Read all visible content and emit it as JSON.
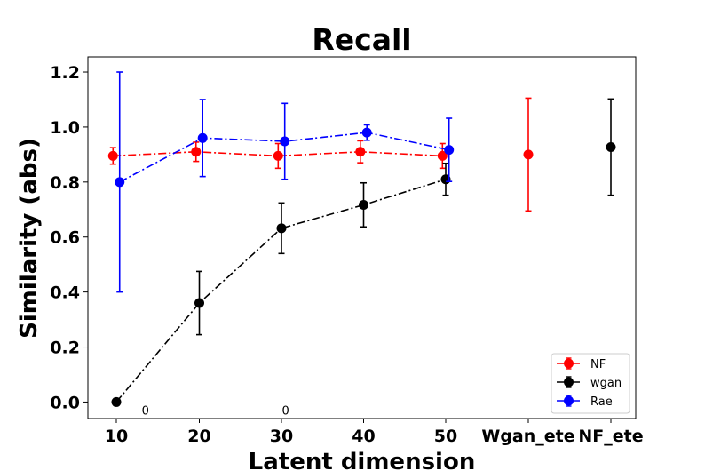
{
  "chart_data": {
    "type": "scatter",
    "title": "Recall",
    "xlabel": "Latent dimension",
    "ylabel": "Similarity (abs)",
    "categories": [
      "10",
      "20",
      "30",
      "40",
      "50",
      "Wgan_ete",
      "NF_ete"
    ],
    "ylim": [
      -0.06,
      1.255
    ],
    "yticks": [
      0.0,
      0.2,
      0.4,
      0.6,
      0.8,
      1.0,
      1.2
    ],
    "ytick_labels": [
      "0.0",
      "0.2",
      "0.4",
      "0.6",
      "0.8",
      "1.0",
      "1.2"
    ],
    "grid": false,
    "legend_position": "lower-right",
    "series": [
      {
        "name": "NF",
        "color": "#ff0000",
        "linestyle": "dashdot",
        "points": [
          {
            "x": 9.6,
            "y": 0.895,
            "err": 0.03
          },
          {
            "x": 19.6,
            "y": 0.91,
            "err": 0.035
          },
          {
            "x": 29.6,
            "y": 0.895,
            "err": 0.045
          },
          {
            "x": 39.6,
            "y": 0.91,
            "err": 0.04
          },
          {
            "x": 49.6,
            "y": 0.895,
            "err": 0.045
          }
        ]
      },
      {
        "name": "wgan",
        "color": "#000000",
        "linestyle": "dashdot",
        "points": [
          {
            "x": 10.0,
            "y": 0.0,
            "err": 0.0
          },
          {
            "x": 20.0,
            "y": 0.36,
            "err": 0.115
          },
          {
            "x": 30.0,
            "y": 0.632,
            "err": 0.092
          },
          {
            "x": 40.0,
            "y": 0.717,
            "err": 0.08
          },
          {
            "x": 50.0,
            "y": 0.81,
            "err": 0.058
          }
        ]
      },
      {
        "name": "Rae",
        "color": "#0000ff",
        "linestyle": "dashdot",
        "points": [
          {
            "x": 10.4,
            "y": 0.8,
            "err": 0.4
          },
          {
            "x": 20.4,
            "y": 0.96,
            "err": 0.14
          },
          {
            "x": 30.4,
            "y": 0.948,
            "err": 0.138
          },
          {
            "x": 40.4,
            "y": 0.98,
            "err": 0.028
          },
          {
            "x": 50.4,
            "y": 0.917,
            "err": 0.115
          }
        ]
      }
    ],
    "extra_points": [
      {
        "category": "Wgan_ete",
        "y": 0.9,
        "err": 0.205,
        "color": "#ff0000"
      },
      {
        "category": "NF_ete",
        "y": 0.927,
        "err": 0.175,
        "color": "#000000"
      }
    ],
    "annotations": [
      {
        "text": "0",
        "x": 13.5,
        "y": -0.045
      },
      {
        "text": "0",
        "x": 30.5,
        "y": -0.045
      }
    ]
  }
}
